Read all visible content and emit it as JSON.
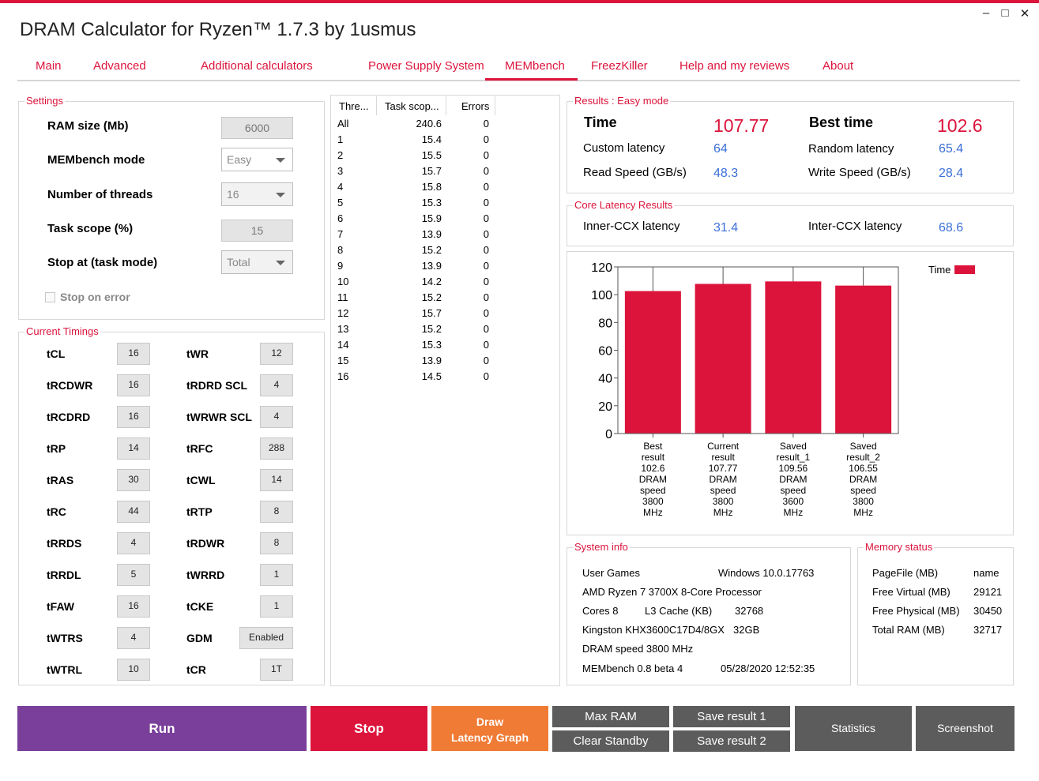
{
  "window": {
    "title": "DRAM Calculator for Ryzen™ 1.7.3 by 1usmus",
    "minimize_glyph": "–",
    "maximize_glyph": "□",
    "close_glyph": "✕"
  },
  "tabs": [
    "Main",
    "Advanced",
    "Additional calculators",
    "Power Supply System",
    "MEMbench",
    "FreezKiller",
    "Help and my reviews",
    "About"
  ],
  "settings": {
    "legend": "Settings",
    "ram_size_label": "RAM size (Mb)",
    "ram_size_value": "6000",
    "mode_label": "MEMbench mode",
    "mode_value": "Easy",
    "threads_label": "Number of threads",
    "threads_value": "16",
    "task_scope_label": "Task scope (%)",
    "task_scope_value": "15",
    "stop_at_label": "Stop at (task mode)",
    "stop_at_value": "Total",
    "stop_on_error_label": "Stop on error"
  },
  "timings": {
    "legend": "Current Timings",
    "left": [
      {
        "label": "tCL",
        "value": "16"
      },
      {
        "label": "tRCDWR",
        "value": "16"
      },
      {
        "label": "tRCDRD",
        "value": "16"
      },
      {
        "label": "tRP",
        "value": "14"
      },
      {
        "label": "tRAS",
        "value": "30"
      },
      {
        "label": "tRC",
        "value": "44"
      },
      {
        "label": "tRRDS",
        "value": "4"
      },
      {
        "label": "tRRDL",
        "value": "5"
      },
      {
        "label": "tFAW",
        "value": "16"
      },
      {
        "label": "tWTRS",
        "value": "4"
      },
      {
        "label": "tWTRL",
        "value": "10"
      }
    ],
    "right": [
      {
        "label": "tWR",
        "value": "12"
      },
      {
        "label": "tRDRD SCL",
        "value": "4"
      },
      {
        "label": "tWRWR SCL",
        "value": "4"
      },
      {
        "label": "tRFC",
        "value": "288"
      },
      {
        "label": "tCWL",
        "value": "14"
      },
      {
        "label": "tRTP",
        "value": "8"
      },
      {
        "label": "tRDWR",
        "value": "8"
      },
      {
        "label": "tWRRD",
        "value": "1"
      },
      {
        "label": "tCKE",
        "value": "1"
      },
      {
        "label": "GDM",
        "value": "Enabled"
      },
      {
        "label": "tCR",
        "value": "1T"
      }
    ]
  },
  "threads_table": {
    "headers": [
      "Thre...",
      "Task scop...",
      "Errors"
    ],
    "rows": [
      [
        "All",
        "240.6",
        "0"
      ],
      [
        "1",
        "15.4",
        "0"
      ],
      [
        "2",
        "15.5",
        "0"
      ],
      [
        "3",
        "15.7",
        "0"
      ],
      [
        "4",
        "15.8",
        "0"
      ],
      [
        "5",
        "15.3",
        "0"
      ],
      [
        "6",
        "15.9",
        "0"
      ],
      [
        "7",
        "13.9",
        "0"
      ],
      [
        "8",
        "15.2",
        "0"
      ],
      [
        "9",
        "13.9",
        "0"
      ],
      [
        "10",
        "14.2",
        "0"
      ],
      [
        "11",
        "15.2",
        "0"
      ],
      [
        "12",
        "15.7",
        "0"
      ],
      [
        "13",
        "15.2",
        "0"
      ],
      [
        "14",
        "15.3",
        "0"
      ],
      [
        "15",
        "13.9",
        "0"
      ],
      [
        "16",
        "14.5",
        "0"
      ]
    ]
  },
  "results": {
    "legend": "Results : Easy mode",
    "time_label": "Time",
    "time_value": "107.77",
    "best_time_label": "Best time",
    "best_time_value": "102.6",
    "custom_latency_label": "Custom latency",
    "custom_latency_value": "64",
    "random_latency_label": "Random latency",
    "random_latency_value": "65.4",
    "read_speed_label": "Read Speed (GB/s)",
    "read_speed_value": "48.3",
    "write_speed_label": "Write Speed (GB/s)",
    "write_speed_value": "28.4"
  },
  "core_latency": {
    "legend": "Core Latency Results",
    "inner_label": "Inner-CCX latency",
    "inner_value": "31.4",
    "inter_label": "Inter-CCX latency",
    "inter_value": "68.6"
  },
  "chart_data": {
    "type": "bar",
    "categories": [
      [
        "Best",
        "result",
        "102.6",
        "DRAM",
        "speed",
        "3800",
        "MHz"
      ],
      [
        "Current",
        "result",
        "107.77",
        "DRAM",
        "speed",
        "3800",
        "MHz"
      ],
      [
        "Saved",
        "result_1",
        "109.56",
        "DRAM",
        "speed",
        "3600",
        "MHz"
      ],
      [
        "Saved",
        "result_2",
        "106.55",
        "DRAM",
        "speed",
        "3800",
        "MHz"
      ]
    ],
    "series": [
      {
        "name": "Time",
        "values": [
          102.6,
          107.77,
          109.56,
          106.55
        ]
      }
    ],
    "ylim": [
      0,
      120
    ],
    "yticks": [
      "0",
      "20",
      "40",
      "60",
      "80",
      "100",
      "120"
    ],
    "grid": "vertical",
    "legend_position": "top-right",
    "bar_color": "#dc143c"
  },
  "system_info": {
    "legend": "System info",
    "user": "User Games",
    "os": "Windows 10.0.17763",
    "cpu": "AMD Ryzen 7 3700X 8-Core Processor",
    "cores": "Cores 8",
    "l3_label": "L3 Cache (KB)",
    "l3_value": "32768",
    "ram_model": "Kingston KHX3600C17D4/8GX",
    "ram_size": "32GB",
    "dram_speed": "DRAM speed 3800 MHz",
    "membench_version": "MEMbench 0.8 beta 4",
    "datetime": "05/28/2020 12:52:35"
  },
  "memory_status": {
    "legend": "Memory status",
    "rows": [
      {
        "label": "PageFile (MB)",
        "value": "name"
      },
      {
        "label": "Free Virtual (MB)",
        "value": "29121"
      },
      {
        "label": "Free Physical (MB)",
        "value": "30450"
      },
      {
        "label": "Total RAM (MB)",
        "value": "32717"
      }
    ]
  },
  "buttons": {
    "run": "Run",
    "stop": "Stop",
    "draw_line1": "Draw",
    "draw_line2": "Latency Graph",
    "max_ram": "Max RAM",
    "clear_standby": "Clear Standby",
    "save_result_1": "Save result 1",
    "save_result_2": "Save result 2",
    "statistics": "Statistics",
    "screenshot": "Screenshot"
  },
  "colors": {
    "accent": "#dc143c",
    "value_blue": "#3b6fd6",
    "run": "#7a3f9a",
    "stop": "#dc143c",
    "draw": "#f07b35",
    "grey_button": "#5c5c5c"
  }
}
